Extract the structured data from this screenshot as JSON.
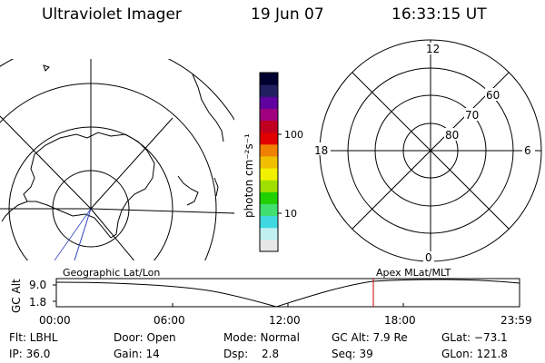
{
  "header": {
    "instrument": "Ultraviolet Imager",
    "date": "19 Jun 07",
    "time": "16:33:15 UT"
  },
  "colorbar": {
    "unit": "photon cm⁻²s⁻¹",
    "ticks": [
      "100",
      "10"
    ],
    "colors": [
      "#e8e8e8",
      "#c0f0f0",
      "#40d8e0",
      "#40e070",
      "#20d000",
      "#a0e000",
      "#f0f000",
      "#f0c000",
      "#f08000",
      "#e00000",
      "#c00020",
      "#a00080",
      "#6000a0",
      "#202060",
      "#000030"
    ]
  },
  "left_map": {
    "title": "Geographic Lat/Lon"
  },
  "right_polar": {
    "title": "Apex MLat/MLT",
    "mlt_labels": {
      "top": "12",
      "right": "6",
      "bottom": "0",
      "left": "18"
    },
    "lat_labels": [
      "60",
      "70",
      "80"
    ]
  },
  "altitude_plot": {
    "axis_label": "GC Alt",
    "y_ticks": [
      "9.0",
      "1.8"
    ],
    "x_ticks": [
      "00:00",
      "06:00",
      "12:00",
      "18:00",
      "23:59"
    ],
    "marker_time": "16:33",
    "marker_color": "#cc0000"
  },
  "info": {
    "filter": "Flt: LBHL",
    "door": "Door: Open",
    "mode": "Mode: Normal",
    "gc_alt": "GC Alt: 7.9 Re",
    "glat": "GLat: −73.1",
    "ip": "IP: 36.0",
    "gain": "Gain: 14",
    "dsp_label": "Dsp:",
    "dsp_value": "2.8",
    "seq": "Seq: 39",
    "glon": "GLon: 121.8"
  }
}
